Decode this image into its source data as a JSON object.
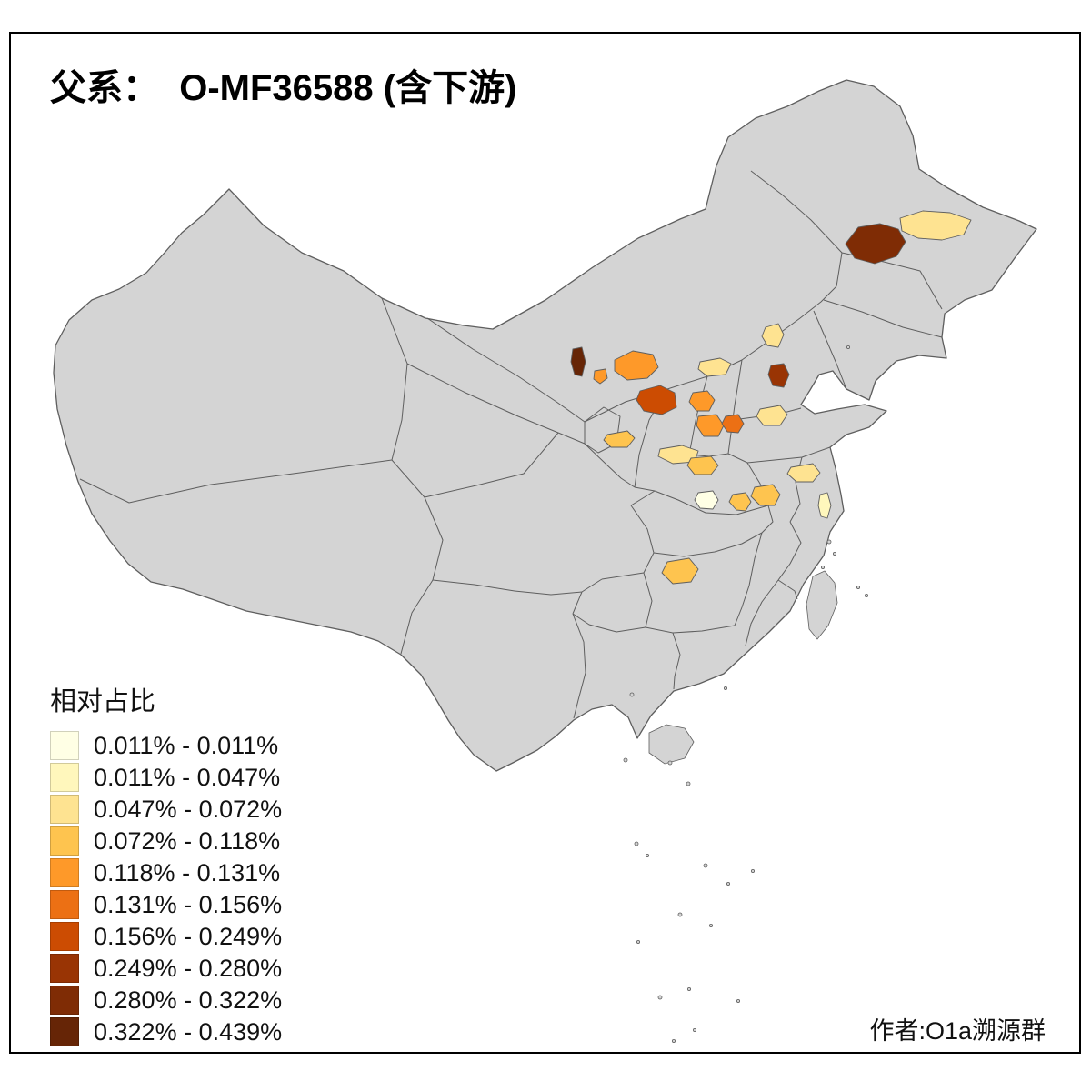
{
  "title": "父系：  O-MF36588 (含下游)",
  "attribution": "作者:O1a溯源群",
  "legend": {
    "title": "相对占比",
    "items": [
      {
        "label": "0.011% - 0.011%",
        "color": "#FFFFE5"
      },
      {
        "label": "0.011% - 0.047%",
        "color": "#FFF7BC"
      },
      {
        "label": "0.047% - 0.072%",
        "color": "#FEE391"
      },
      {
        "label": "0.072% - 0.118%",
        "color": "#FEC44F"
      },
      {
        "label": "0.118% - 0.131%",
        "color": "#FE9929"
      },
      {
        "label": "0.131% - 0.156%",
        "color": "#EC7014"
      },
      {
        "label": "0.156% - 0.249%",
        "color": "#CC4C02"
      },
      {
        "label": "0.249% - 0.280%",
        "color": "#993404"
      },
      {
        "label": "0.280% - 0.322%",
        "color": "#7F2C05"
      },
      {
        "label": "0.322% - 0.439%",
        "color": "#662506"
      }
    ]
  },
  "map": {
    "land_color": "#D4D4D4",
    "border_color": "#5E5E5E",
    "background_color": "#FFFFFF",
    "frame_color": "#000000",
    "regions": [
      {
        "id": "r1",
        "class": 9
      },
      {
        "id": "r2",
        "class": 3
      },
      {
        "id": "r3",
        "class": 3
      },
      {
        "id": "r4",
        "class": 8
      },
      {
        "id": "r5",
        "class": 10
      },
      {
        "id": "r6",
        "class": 5
      },
      {
        "id": "r7",
        "class": 5
      },
      {
        "id": "r8",
        "class": 7
      },
      {
        "id": "r9",
        "class": 5
      },
      {
        "id": "r10",
        "class": 5
      },
      {
        "id": "r11",
        "class": 6
      },
      {
        "id": "r12",
        "class": 3
      },
      {
        "id": "r13",
        "class": 3
      },
      {
        "id": "r14",
        "class": 4
      },
      {
        "id": "r15",
        "class": 3
      },
      {
        "id": "r16",
        "class": 4
      },
      {
        "id": "r17",
        "class": 1
      },
      {
        "id": "r18",
        "class": 4
      },
      {
        "id": "r19",
        "class": 4
      },
      {
        "id": "r20",
        "class": 3
      },
      {
        "id": "r21",
        "class": 2
      },
      {
        "id": "r22",
        "class": 4
      }
    ]
  }
}
